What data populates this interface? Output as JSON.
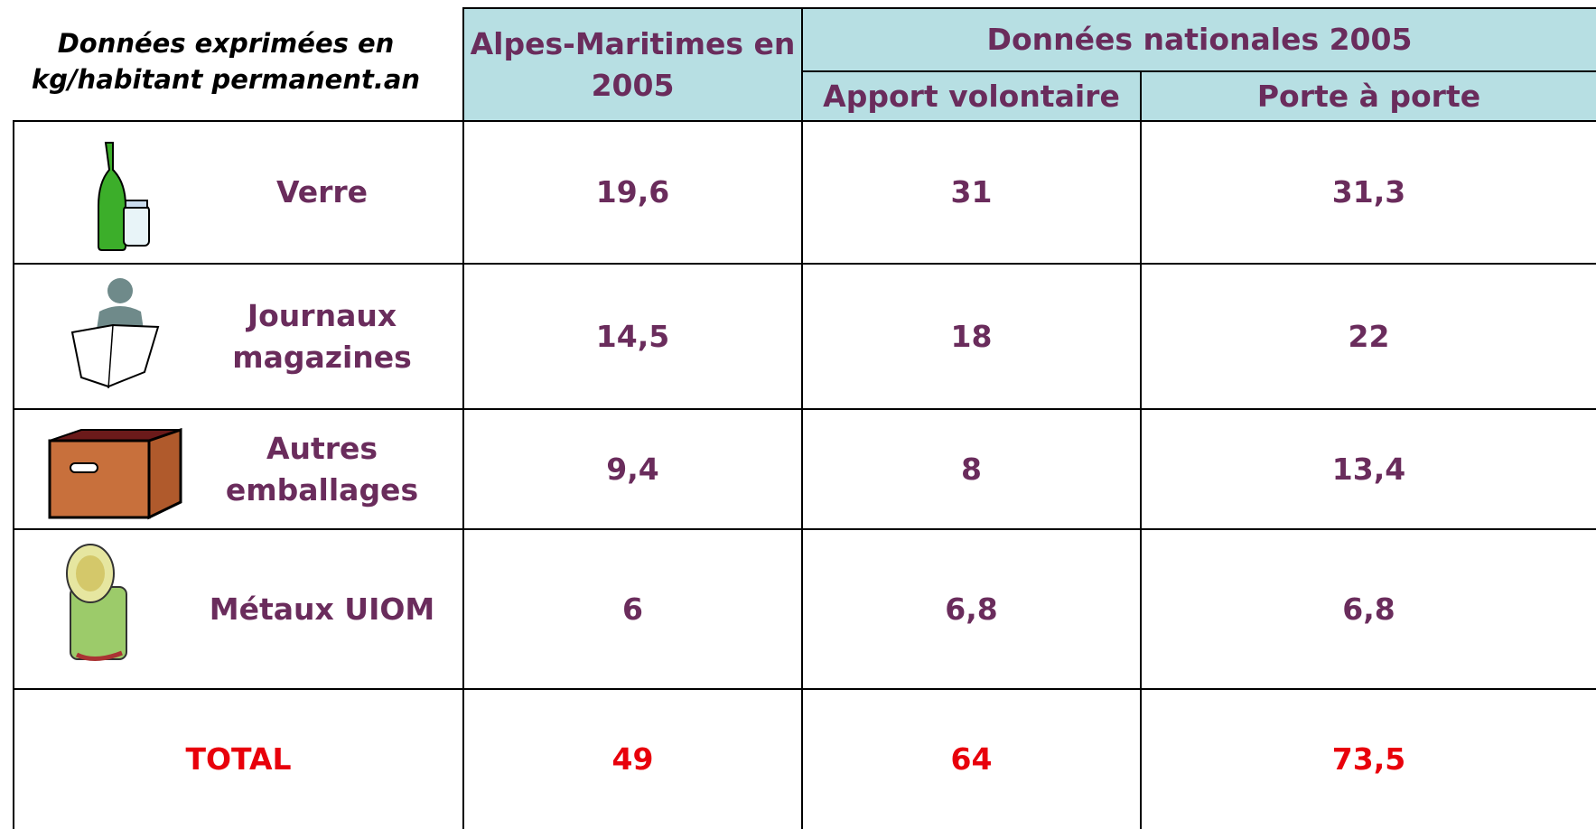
{
  "header": {
    "note": [
      "Données exprimées en",
      "kg/habitant permanent.an"
    ],
    "col1": [
      "Alpes-Maritimes en",
      "2005"
    ],
    "group": "Données nationales 2005",
    "col2": "Apport volontaire",
    "col3": "Porte à porte"
  },
  "rows": [
    {
      "label": [
        "Verre"
      ],
      "values": [
        "19,6",
        "31",
        "31,3"
      ]
    },
    {
      "label": [
        "Journaux",
        "magazines"
      ],
      "values": [
        "14,5",
        "18",
        "22"
      ]
    },
    {
      "label": [
        "Autres",
        "emballages"
      ],
      "values": [
        "9,4",
        "8",
        "13,4"
      ]
    },
    {
      "label": [
        "Métaux UIOM"
      ],
      "values": [
        "6",
        "6,8",
        "6,8"
      ]
    }
  ],
  "total": {
    "label": "TOTAL",
    "values": [
      "49",
      "64",
      "73,5"
    ]
  }
}
